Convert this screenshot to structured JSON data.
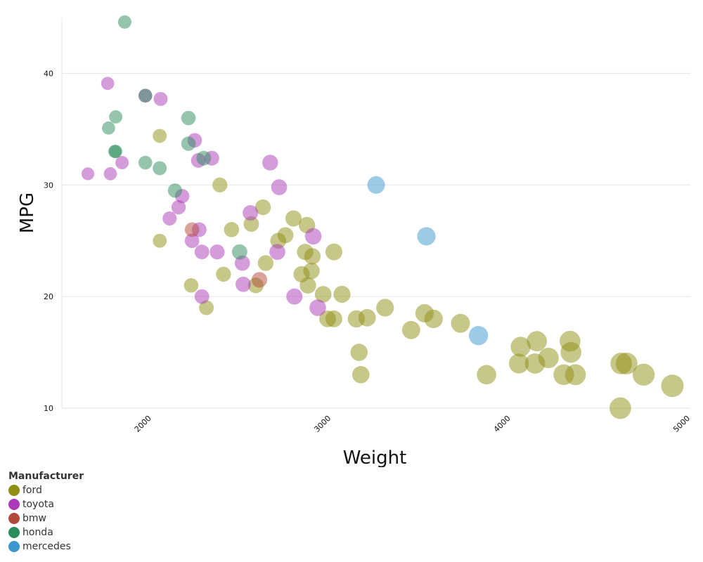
{
  "chart_data": {
    "type": "scatter",
    "xlabel": "Weight",
    "ylabel": "MPG",
    "xlim": [
      1500,
      5000
    ],
    "ylim": [
      10,
      45
    ],
    "xticks": [
      2000,
      3000,
      4000,
      5000
    ],
    "yticks": [
      10,
      20,
      30,
      40
    ],
    "grid": true,
    "legend": {
      "title": "Manufacturer",
      "placement": "bottom-left",
      "items": [
        {
          "label": "ford",
          "color": "#8f8f14"
        },
        {
          "label": "toyota",
          "color": "#aa3ab8"
        },
        {
          "label": "bmw",
          "color": "#b24a3c"
        },
        {
          "label": "honda",
          "color": "#2b8c5c"
        },
        {
          "label": "mercedes",
          "color": "#3a98cf"
        }
      ]
    },
    "series": [
      {
        "name": "ford",
        "points": [
          [
            2045,
            34.4
          ],
          [
            2045,
            25
          ],
          [
            2220,
            21
          ],
          [
            2305,
            19
          ],
          [
            2380,
            30
          ],
          [
            2400,
            22
          ],
          [
            2445,
            26
          ],
          [
            2555,
            26.5
          ],
          [
            2580,
            21
          ],
          [
            2620,
            28
          ],
          [
            2635,
            23
          ],
          [
            2705,
            25
          ],
          [
            2745,
            25.5
          ],
          [
            2790,
            27
          ],
          [
            2835,
            22
          ],
          [
            2855,
            24
          ],
          [
            2865,
            26.4
          ],
          [
            2870,
            21
          ],
          [
            2890,
            22.3
          ],
          [
            2895,
            23.6
          ],
          [
            2955,
            20.2
          ],
          [
            2980,
            18
          ],
          [
            3015,
            24
          ],
          [
            3015,
            18
          ],
          [
            3060,
            20.2
          ],
          [
            3140,
            18
          ],
          [
            3155,
            15
          ],
          [
            3165,
            13
          ],
          [
            3200,
            18.1
          ],
          [
            3300,
            19
          ],
          [
            3445,
            17
          ],
          [
            3520,
            18.5
          ],
          [
            3570,
            18
          ],
          [
            3720,
            17.6
          ],
          [
            3865,
            13
          ],
          [
            4045,
            14
          ],
          [
            4055,
            15.5
          ],
          [
            4135,
            14
          ],
          [
            4145,
            16
          ],
          [
            4210,
            14.5
          ],
          [
            4295,
            13
          ],
          [
            4330,
            16
          ],
          [
            4335,
            15
          ],
          [
            4360,
            13
          ],
          [
            4610,
            10
          ],
          [
            4615,
            14
          ],
          [
            4645,
            14
          ],
          [
            4740,
            13
          ],
          [
            4900,
            12
          ]
        ]
      },
      {
        "name": "toyota",
        "points": [
          [
            1645,
            31
          ],
          [
            1755,
            39.1
          ],
          [
            1770,
            31
          ],
          [
            1835,
            32
          ],
          [
            1965,
            38
          ],
          [
            2050,
            37.7
          ],
          [
            2100,
            27
          ],
          [
            2150,
            28
          ],
          [
            2170,
            29
          ],
          [
            2225,
            25
          ],
          [
            2240,
            34
          ],
          [
            2260,
            32.2
          ],
          [
            2265,
            26
          ],
          [
            2280,
            24
          ],
          [
            2280,
            20
          ],
          [
            2335,
            32.4
          ],
          [
            2365,
            24
          ],
          [
            2505,
            23
          ],
          [
            2510,
            21.1
          ],
          [
            2550,
            27.5
          ],
          [
            2660,
            32
          ],
          [
            2700,
            24
          ],
          [
            2710,
            29.8
          ],
          [
            2795,
            20
          ],
          [
            2900,
            25.4
          ],
          [
            2925,
            19
          ]
        ]
      },
      {
        "name": "bmw",
        "points": [
          [
            2225,
            26
          ],
          [
            2600,
            21.5
          ]
        ]
      },
      {
        "name": "honda",
        "points": [
          [
            1760,
            35.1
          ],
          [
            1795,
            33
          ],
          [
            1800,
            36.1
          ],
          [
            1800,
            33
          ],
          [
            1850,
            44.6
          ],
          [
            1965,
            32
          ],
          [
            1965,
            38
          ],
          [
            2045,
            31.5
          ],
          [
            2130,
            29.5
          ],
          [
            2205,
            33.7
          ],
          [
            2205,
            36
          ],
          [
            2290,
            32.4
          ],
          [
            2490,
            24
          ]
        ]
      },
      {
        "name": "mercedes",
        "points": [
          [
            3250,
            30
          ],
          [
            3530,
            25.4
          ],
          [
            3820,
            16.5
          ]
        ]
      }
    ]
  }
}
